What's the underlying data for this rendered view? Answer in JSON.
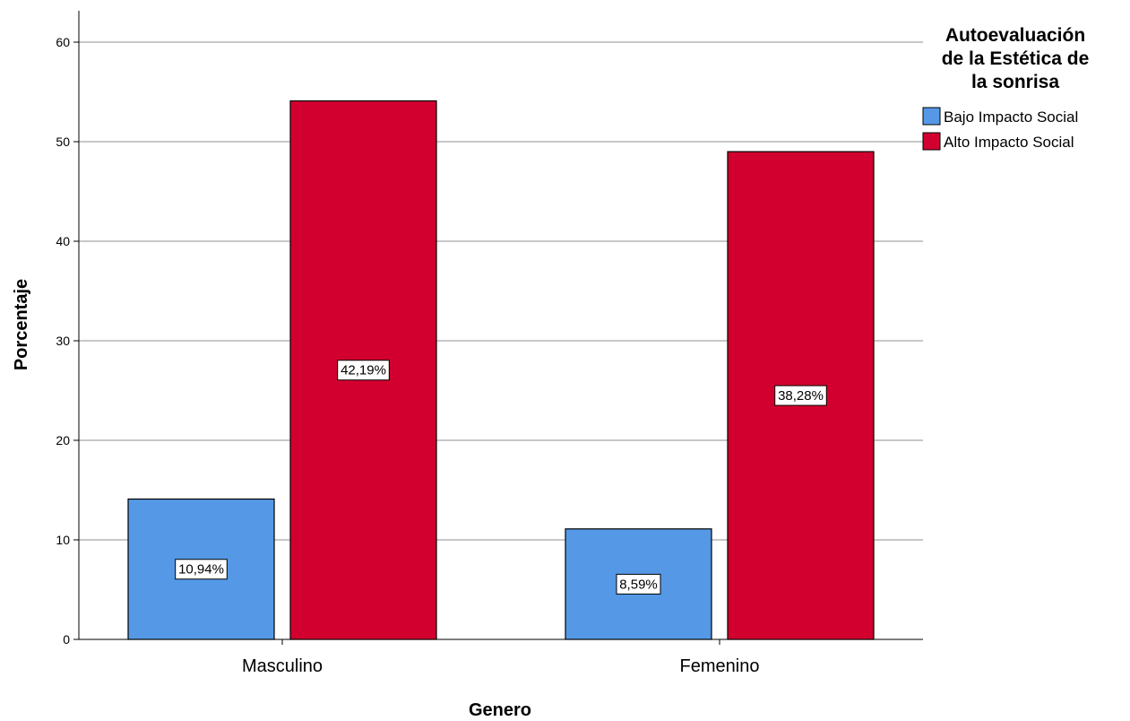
{
  "chart_data": {
    "type": "bar",
    "categories": [
      "Masculino",
      "Femenino"
    ],
    "series": [
      {
        "name": "Bajo Impacto Social",
        "values": [
          14.1,
          11.1
        ],
        "labels": [
          "10,94%",
          "8,59%"
        ],
        "color": "#5599e6"
      },
      {
        "name": "Alto Impacto Social",
        "values": [
          54.1,
          49.0
        ],
        "labels": [
          "42,19%",
          "38,28%"
        ],
        "color": "#d2002f"
      }
    ],
    "xlabel": "Genero",
    "ylabel": "Porcentaje",
    "ylim": [
      0,
      63
    ],
    "yticks": [
      0,
      10,
      20,
      30,
      40,
      50,
      60
    ],
    "grid": true,
    "legend": {
      "title_lines": [
        "Autoevaluación",
        "de la Estética de",
        "la sonrisa"
      ],
      "placement": "top-right"
    }
  }
}
